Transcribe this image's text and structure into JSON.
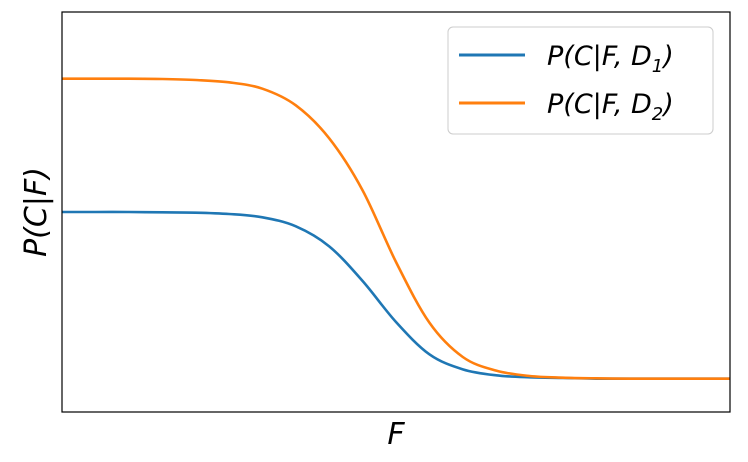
{
  "chart_data": {
    "type": "line",
    "xlabel": "F",
    "ylabel": "P(C|F)",
    "grid": false,
    "ticks": "none",
    "legend_position": "top-right",
    "x_range": [
      -5,
      5
    ],
    "y_range": [
      0,
      1.2
    ],
    "x_samples": [
      -5,
      -4.5,
      -4,
      -3.5,
      -3,
      -2.5,
      -2,
      -1.5,
      -1,
      -0.5,
      0,
      0.5,
      1,
      1.5,
      2,
      2.5,
      3,
      3.5,
      4,
      4.5,
      5
    ],
    "series": [
      {
        "legend_main": "P(C|F, D",
        "legend_sub": "1",
        "legend_close": ")",
        "color": "#1f77b4",
        "values": [
          0.6,
          0.6,
          0.6,
          0.599,
          0.598,
          0.594,
          0.584,
          0.557,
          0.497,
          0.393,
          0.27,
          0.173,
          0.128,
          0.11,
          0.104,
          0.102,
          0.1,
          0.1,
          0.1,
          0.1,
          0.1
        ]
      },
      {
        "legend_main": "P(C|F, D",
        "legend_sub": "2",
        "legend_close": ")",
        "color": "#ff7f0e",
        "values": [
          1.0,
          1.0,
          1.0,
          0.999,
          0.996,
          0.989,
          0.97,
          0.92,
          0.821,
          0.665,
          0.45,
          0.268,
          0.165,
          0.124,
          0.108,
          0.103,
          0.101,
          0.1,
          0.1,
          0.1,
          0.1
        ]
      }
    ]
  }
}
